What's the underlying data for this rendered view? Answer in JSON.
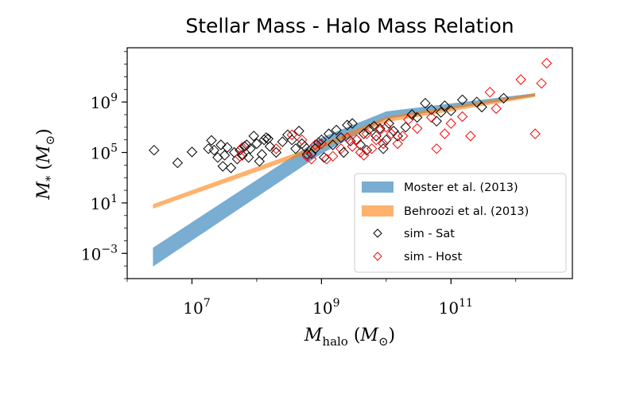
{
  "chart_data": {
    "type": "scatter",
    "title": "Stellar Mass - Halo Mass Relation",
    "xlabel": "M_halo (M_⊙)",
    "ylabel": "M_* (M_⊙)",
    "x_scale": "log",
    "y_scale": "log",
    "xlim": [
      1000000,
      7500000000000
    ],
    "ylim": [
      1e-05,
      20000000000000
    ],
    "x_ticks": [
      {
        "value": 10000000,
        "mantissa": "10",
        "exp": "7"
      },
      {
        "value": 1000000000,
        "mantissa": "10",
        "exp": "9"
      },
      {
        "value": 100000000000,
        "mantissa": "10",
        "exp": "11"
      }
    ],
    "y_ticks": [
      {
        "value": 0.001,
        "mantissa": "10",
        "exp": "−3"
      },
      {
        "value": 10,
        "mantissa": "10",
        "exp": "1"
      },
      {
        "value": 100000,
        "mantissa": "10",
        "exp": "5"
      },
      {
        "value": 1000000000,
        "mantissa": "10",
        "exp": "9"
      }
    ],
    "grid": false,
    "legend_position": "lower-right",
    "bands": [
      {
        "name": "Moster et al. (2013)",
        "color": "#1f77b4",
        "opacity": 0.6,
        "x": [
          2500000,
          1000000000,
          10000000000,
          2000000000000
        ],
        "y_low": [
          9e-05,
          80000,
          45000000,
          3000000000
        ],
        "y_high": [
          0.0028,
          1500000,
          180000000,
          5000000000
        ]
      },
      {
        "name": "Behroozi et al. (2013)",
        "color": "#ff7f0e",
        "opacity": 0.6,
        "x": [
          2500000,
          1000000000,
          10000000000,
          2000000000000
        ],
        "y_low": [
          3.5,
          200000,
          25000000,
          2500000000
        ],
        "y_high": [
          8,
          500000,
          70000000,
          5000000000
        ]
      }
    ],
    "series": [
      {
        "name": "sim - Sat",
        "marker": "diamond",
        "color": "#000000",
        "points": [
          [
            2600000,
            150000
          ],
          [
            6000000,
            15000
          ],
          [
            10000000,
            110000
          ],
          [
            18000000,
            200000
          ],
          [
            20000000,
            900000
          ],
          [
            22000000,
            150000
          ],
          [
            25000000,
            40000
          ],
          [
            28000000,
            400000
          ],
          [
            30000000,
            8000
          ],
          [
            32000000,
            60000
          ],
          [
            35000000,
            250000
          ],
          [
            40000000,
            6000
          ],
          [
            45000000,
            100000
          ],
          [
            50000000,
            30000
          ],
          [
            55000000,
            150000
          ],
          [
            60000000,
            60000
          ],
          [
            65000000,
            300000
          ],
          [
            70000000,
            400000
          ],
          [
            75000000,
            40000
          ],
          [
            80000000,
            200000
          ],
          [
            90000000,
            2000000
          ],
          [
            100000000,
            500000
          ],
          [
            110000000,
            20000
          ],
          [
            120000000,
            70000
          ],
          [
            130000000,
            1000000
          ],
          [
            140000000,
            1500000
          ],
          [
            150000000,
            1200000
          ],
          [
            160000000,
            300000
          ],
          [
            200000000,
            100000
          ],
          [
            250000000,
            700000
          ],
          [
            300000000,
            2500000
          ],
          [
            350000000,
            1000000
          ],
          [
            400000000,
            200000
          ],
          [
            450000000,
            5000000
          ],
          [
            500000000,
            500000
          ],
          [
            550000000,
            300000
          ],
          [
            600000000,
            70000
          ],
          [
            700000000,
            80000
          ],
          [
            800000000,
            200000
          ],
          [
            900000000,
            600000
          ],
          [
            1000000000,
            1000000
          ],
          [
            1100000000,
            40000
          ],
          [
            1300000000,
            3000000
          ],
          [
            1500000000,
            400000
          ],
          [
            1700000000,
            6000000
          ],
          [
            2000000000,
            1500000
          ],
          [
            2200000000,
            100000
          ],
          [
            2500000000,
            15000000
          ],
          [
            2800000000,
            800000
          ],
          [
            3000000000,
            20000000
          ],
          [
            3500000000,
            1000000
          ],
          [
            4000000000,
            400000
          ],
          [
            4500000000,
            3000000
          ],
          [
            5000000000,
            150000
          ],
          [
            5500000000,
            7000000
          ],
          [
            6500000000,
            12000000
          ],
          [
            7000000000,
            2000000
          ],
          [
            8000000000,
            8000000
          ],
          [
            9000000000,
            200000
          ],
          [
            10000000000,
            1000000
          ],
          [
            11000000000,
            20000000
          ],
          [
            13000000000,
            5000000
          ],
          [
            15000000000,
            2000000
          ],
          [
            20000000000,
            10000000
          ],
          [
            25000000000,
            100000000
          ],
          [
            30000000000,
            60000000
          ],
          [
            40000000000,
            800000000
          ],
          [
            50000000000,
            250000000
          ],
          [
            60000000000,
            30000000
          ],
          [
            70000000000,
            150000000
          ],
          [
            80000000000,
            500000000
          ],
          [
            100000000000,
            200000000
          ],
          [
            150000000000,
            1500000000
          ],
          [
            250000000000,
            1000000000
          ],
          [
            300000000000,
            400000000
          ],
          [
            650000000000,
            2000000000
          ]
        ]
      },
      {
        "name": "sim - Host",
        "marker": "diamond",
        "color": "#ff0000",
        "points": [
          [
            55000000,
            50000
          ],
          [
            60000000,
            250000
          ],
          [
            200000000,
            200000
          ],
          [
            350000000,
            2500000
          ],
          [
            500000000,
            1000000
          ],
          [
            600000000,
            50000
          ],
          [
            700000000,
            30000
          ],
          [
            800000000,
            400000
          ],
          [
            1000000000,
            500000
          ],
          [
            1200000000,
            30000
          ],
          [
            1500000000,
            50000
          ],
          [
            2000000000,
            200000
          ],
          [
            2500000000,
            1500000
          ],
          [
            3000000000,
            300000
          ],
          [
            3500000000,
            1000000
          ],
          [
            4000000000,
            100000
          ],
          [
            4500000000,
            60000
          ],
          [
            5000000000,
            3000000
          ],
          [
            6000000000,
            200000
          ],
          [
            7000000000,
            1000000
          ],
          [
            8000000000,
            6000000
          ],
          [
            9000000000,
            500000
          ],
          [
            10000000000,
            10000000
          ],
          [
            12000000000,
            3000000
          ],
          [
            15000000000,
            500000
          ],
          [
            18000000000,
            2000000
          ],
          [
            22000000000,
            40000000
          ],
          [
            30000000000,
            8000000
          ],
          [
            50000000000,
            60000000
          ],
          [
            60000000000,
            200000
          ],
          [
            80000000000,
            3000000
          ],
          [
            100000000000,
            20000000
          ],
          [
            150000000000,
            70000000
          ],
          [
            200000000000,
            2000000
          ],
          [
            400000000000,
            6000000000
          ],
          [
            500000000000,
            300000000
          ],
          [
            1200000000000,
            60000000000
          ],
          [
            2000000000000,
            3000000
          ],
          [
            2500000000000,
            30000000000
          ],
          [
            3000000000000,
            1200000000000
          ]
        ]
      }
    ]
  }
}
